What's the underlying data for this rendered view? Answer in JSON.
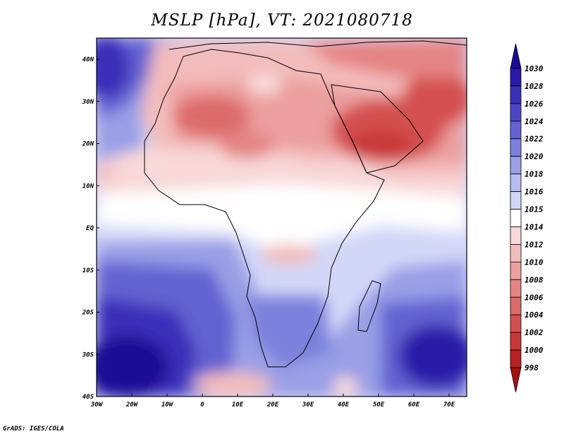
{
  "title": "MSLP [hPa], VT: 2021080718",
  "credit": "GrADS: IGES/COLA",
  "lat_labels": [
    "40N",
    "30N",
    "20N",
    "10N",
    "EQ",
    "10S",
    "20S",
    "30S",
    "40S"
  ],
  "lon_labels": [
    "30W",
    "20W",
    "10W",
    "0",
    "10E",
    "20E",
    "30E",
    "40E",
    "50E",
    "60E",
    "70E"
  ],
  "colorbar": {
    "labels": [
      "1030",
      "1028",
      "1026",
      "1024",
      "1022",
      "1020",
      "1018",
      "1016",
      "1015",
      "1014",
      "1012",
      "1010",
      "1008",
      "1006",
      "1004",
      "1002",
      "1000",
      "998"
    ],
    "colors": [
      "#1a0a96",
      "#2a1aa8",
      "#3a2fb8",
      "#4d45c6",
      "#6462d2",
      "#7d80dc",
      "#9a9fe6",
      "#b7bcef",
      "#d3d7f7",
      "#ffffff",
      "#f8d8d8",
      "#f3bcbc",
      "#ec9f9f",
      "#e58484",
      "#dd6a6a",
      "#d45050",
      "#c93838",
      "#b82222",
      "#a81010"
    ]
  },
  "colors": {
    "frame": "#000000",
    "coast": "#000000"
  }
}
